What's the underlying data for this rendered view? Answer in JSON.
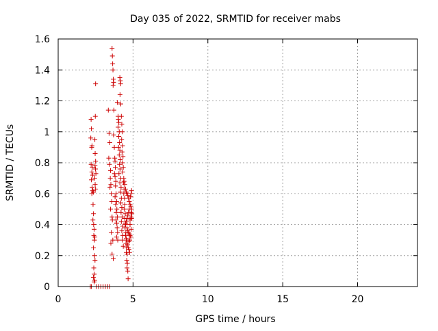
{
  "chart_data": {
    "type": "scatter",
    "title": "Day 035 of 2022, SRMTID for receiver mabs",
    "xlabel": "GPS time / hours",
    "ylabel": "SRMTID / TECUs",
    "xlim": [
      0,
      24
    ],
    "ylim": [
      0,
      1.6
    ],
    "xticks": [
      0,
      5,
      10,
      15,
      20
    ],
    "yticks": [
      0,
      0.2,
      0.4,
      0.6,
      0.8,
      1,
      1.2,
      1.4,
      1.6
    ],
    "xtick_labels": [
      "0",
      "5",
      "10",
      "15",
      "20"
    ],
    "ytick_labels": [
      "0",
      "0.2",
      "0.4",
      "0.6",
      "0.8",
      "1",
      "1.2",
      "1.4",
      "1.6"
    ],
    "grid": true,
    "legend": "none",
    "marker": "plus",
    "color": "#cc0000",
    "series": [
      {
        "values": [
          [
            2.15,
            0.0
          ],
          [
            2.22,
            0.0
          ],
          [
            2.55,
            0.0
          ],
          [
            2.7,
            0.0
          ],
          [
            2.85,
            0.0
          ],
          [
            3.0,
            0.0
          ],
          [
            3.15,
            0.0
          ],
          [
            3.3,
            0.0
          ],
          [
            3.45,
            0.0
          ],
          [
            2.4,
            0.03
          ],
          [
            2.2,
            1.08
          ],
          [
            2.22,
            1.02
          ],
          [
            2.18,
            0.96
          ],
          [
            2.24,
            0.9
          ],
          [
            2.26,
            0.91
          ],
          [
            2.2,
            0.79
          ],
          [
            2.28,
            0.77
          ],
          [
            2.25,
            0.74
          ],
          [
            2.3,
            0.72
          ],
          [
            2.22,
            0.69
          ],
          [
            2.27,
            0.64
          ],
          [
            2.31,
            0.62
          ],
          [
            2.35,
            0.61
          ],
          [
            2.25,
            0.6
          ],
          [
            2.33,
            0.53
          ],
          [
            2.36,
            0.47
          ],
          [
            2.32,
            0.43
          ],
          [
            2.37,
            0.4
          ],
          [
            2.4,
            0.37
          ],
          [
            2.38,
            0.33
          ],
          [
            2.42,
            0.3
          ],
          [
            2.45,
            0.32
          ],
          [
            2.36,
            0.25
          ],
          [
            2.43,
            0.2
          ],
          [
            2.46,
            0.17
          ],
          [
            2.38,
            0.12
          ],
          [
            2.41,
            0.08
          ],
          [
            2.35,
            0.06
          ],
          [
            2.44,
            0.04
          ],
          [
            2.5,
            1.31
          ],
          [
            2.48,
            1.1
          ],
          [
            2.45,
            0.95
          ],
          [
            2.47,
            0.86
          ],
          [
            2.5,
            0.81
          ],
          [
            2.46,
            0.78
          ],
          [
            2.49,
            0.76
          ],
          [
            2.52,
            0.73
          ],
          [
            2.44,
            0.7
          ],
          [
            2.47,
            0.66
          ],
          [
            2.5,
            0.63
          ],
          [
            3.35,
            1.14
          ],
          [
            3.4,
            0.99
          ],
          [
            3.45,
            0.93
          ],
          [
            3.38,
            0.83
          ],
          [
            3.42,
            0.79
          ],
          [
            3.5,
            0.75
          ],
          [
            3.48,
            0.7
          ],
          [
            3.52,
            0.66
          ],
          [
            3.46,
            0.64
          ],
          [
            3.55,
            0.6
          ],
          [
            3.58,
            0.55
          ],
          [
            3.5,
            0.5
          ],
          [
            3.6,
            0.45
          ],
          [
            3.62,
            0.43
          ],
          [
            3.55,
            0.35
          ],
          [
            3.65,
            0.3
          ],
          [
            3.52,
            0.28
          ],
          [
            3.6,
            0.21
          ],
          [
            3.68,
            0.18
          ],
          [
            3.6,
            1.54
          ],
          [
            3.62,
            1.49
          ],
          [
            3.64,
            1.44
          ],
          [
            3.66,
            1.4
          ],
          [
            3.68,
            1.34
          ],
          [
            3.7,
            1.32
          ],
          [
            3.67,
            1.3
          ],
          [
            3.72,
            1.14
          ],
          [
            3.7,
            0.98
          ],
          [
            3.75,
            0.9
          ],
          [
            3.78,
            0.83
          ],
          [
            3.8,
            0.81
          ],
          [
            3.82,
            0.77
          ],
          [
            3.76,
            0.73
          ],
          [
            3.8,
            0.71
          ],
          [
            3.85,
            0.68
          ],
          [
            3.83,
            0.65
          ],
          [
            3.87,
            0.6
          ],
          [
            3.8,
            0.58
          ],
          [
            3.9,
            0.55
          ],
          [
            3.84,
            0.53
          ],
          [
            3.92,
            0.5
          ],
          [
            3.88,
            0.48
          ],
          [
            3.95,
            0.45
          ],
          [
            3.86,
            0.43
          ],
          [
            3.9,
            0.41
          ],
          [
            3.94,
            0.38
          ],
          [
            3.97,
            0.35
          ],
          [
            3.9,
            0.32
          ],
          [
            3.98,
            0.3
          ],
          [
            3.95,
            1.19
          ],
          [
            4.0,
            1.1
          ],
          [
            4.02,
            1.08
          ],
          [
            4.05,
            1.06
          ],
          [
            4.0,
            1.03
          ],
          [
            4.08,
            1.0
          ],
          [
            4.05,
            0.97
          ],
          [
            4.1,
            0.93
          ],
          [
            4.03,
            0.9
          ],
          [
            4.12,
            0.88
          ],
          [
            4.08,
            0.85
          ],
          [
            4.15,
            0.82
          ],
          [
            4.1,
            0.79
          ],
          [
            4.13,
            0.76
          ],
          [
            4.06,
            0.73
          ],
          [
            4.17,
            0.7
          ],
          [
            4.12,
            0.67
          ],
          [
            4.2,
            0.64
          ],
          [
            4.15,
            0.61
          ],
          [
            4.22,
            0.57
          ],
          [
            4.18,
            0.54
          ],
          [
            4.25,
            0.51
          ],
          [
            4.2,
            0.48
          ],
          [
            4.27,
            0.45
          ],
          [
            4.22,
            0.42
          ],
          [
            4.3,
            0.39
          ],
          [
            4.25,
            0.36
          ],
          [
            4.32,
            0.33
          ],
          [
            4.28,
            0.3
          ],
          [
            4.35,
            0.26
          ],
          [
            4.12,
            1.35
          ],
          [
            4.15,
            1.33
          ],
          [
            4.17,
            1.31
          ],
          [
            4.13,
            1.24
          ],
          [
            4.18,
            1.18
          ],
          [
            4.22,
            1.1
          ],
          [
            4.25,
            1.05
          ],
          [
            4.28,
            1.0
          ],
          [
            4.24,
            0.95
          ],
          [
            4.3,
            0.91
          ],
          [
            4.27,
            0.87
          ],
          [
            4.33,
            0.84
          ],
          [
            4.3,
            0.8
          ],
          [
            4.35,
            0.77
          ],
          [
            4.32,
            0.74
          ],
          [
            4.38,
            0.7
          ],
          [
            4.36,
            0.67
          ],
          [
            4.4,
            0.63
          ],
          [
            4.38,
            0.6
          ],
          [
            4.43,
            0.57
          ],
          [
            4.45,
            0.53
          ],
          [
            4.42,
            0.5
          ],
          [
            4.48,
            0.47
          ],
          [
            4.46,
            0.44
          ],
          [
            4.5,
            0.41
          ],
          [
            4.47,
            0.38
          ],
          [
            4.52,
            0.35
          ],
          [
            4.5,
            0.33
          ],
          [
            4.55,
            0.31
          ],
          [
            4.53,
            0.28
          ],
          [
            4.56,
            0.25
          ],
          [
            4.55,
            0.22
          ],
          [
            4.6,
            0.21
          ],
          [
            4.58,
            0.17
          ],
          [
            4.62,
            0.15
          ],
          [
            4.6,
            0.12
          ],
          [
            4.65,
            0.1
          ],
          [
            4.67,
            0.05
          ],
          [
            4.4,
            0.68
          ],
          [
            4.45,
            0.66
          ],
          [
            4.5,
            0.63
          ],
          [
            4.55,
            0.61
          ],
          [
            4.6,
            0.6
          ],
          [
            4.65,
            0.59
          ],
          [
            4.7,
            0.57
          ],
          [
            4.75,
            0.55
          ],
          [
            4.8,
            0.53
          ],
          [
            4.85,
            0.52
          ],
          [
            4.9,
            0.5
          ],
          [
            4.88,
            0.48
          ],
          [
            4.92,
            0.47
          ],
          [
            4.86,
            0.45
          ],
          [
            4.9,
            0.44
          ],
          [
            4.8,
            0.43
          ],
          [
            4.75,
            0.5
          ],
          [
            4.7,
            0.48
          ],
          [
            4.65,
            0.46
          ],
          [
            4.6,
            0.44
          ],
          [
            4.55,
            0.42
          ],
          [
            4.5,
            0.4
          ],
          [
            4.6,
            0.38
          ],
          [
            4.65,
            0.36
          ],
          [
            4.7,
            0.35
          ],
          [
            4.75,
            0.34
          ],
          [
            4.8,
            0.33
          ],
          [
            4.85,
            0.32
          ],
          [
            4.78,
            0.3
          ],
          [
            4.72,
            0.29
          ],
          [
            4.83,
            0.58
          ],
          [
            4.87,
            0.6
          ],
          [
            4.9,
            0.62
          ],
          [
            4.8,
            0.4
          ],
          [
            4.88,
            0.37
          ],
          [
            4.68,
            0.25
          ],
          [
            4.73,
            0.24
          ],
          [
            4.77,
            0.22
          ],
          [
            4.63,
            0.27
          ],
          [
            4.58,
            0.3
          ]
        ]
      }
    ]
  }
}
